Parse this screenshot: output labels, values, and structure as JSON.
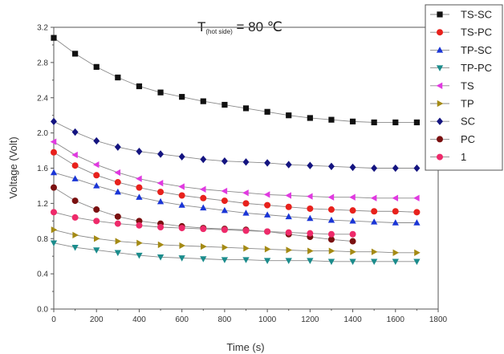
{
  "chart_data": {
    "type": "scatter",
    "title_main": "T",
    "title_sub": "(hot side)",
    "title_rest": " = 80 ℃",
    "xlabel": "Time (s)",
    "ylabel": "Voltage (Volt)",
    "xlim": [
      0,
      1800
    ],
    "ylim": [
      0.0,
      3.2
    ],
    "xticks": [
      "0",
      "200",
      "400",
      "600",
      "800",
      "1000",
      "1200",
      "1400",
      "1600",
      "1800"
    ],
    "yticks": [
      "0.0",
      "0.4",
      "0.8",
      "1.2",
      "1.6",
      "2.0",
      "2.4",
      "2.8",
      "3.2"
    ],
    "legend_position": "right",
    "x": [
      0,
      100,
      200,
      300,
      400,
      500,
      600,
      700,
      800,
      900,
      1000,
      1100,
      1200,
      1300,
      1400,
      1500,
      1600,
      1700
    ],
    "series": [
      {
        "name": "TS-SC",
        "marker": "square",
        "color": "#111111",
        "values": [
          3.08,
          2.9,
          2.75,
          2.63,
          2.53,
          2.46,
          2.41,
          2.36,
          2.32,
          2.28,
          2.24,
          2.2,
          2.17,
          2.15,
          2.13,
          2.12,
          2.12,
          2.12
        ]
      },
      {
        "name": "TS-PC",
        "marker": "circle",
        "color": "#e8211c",
        "values": [
          1.78,
          1.63,
          1.52,
          1.44,
          1.38,
          1.33,
          1.29,
          1.26,
          1.23,
          1.2,
          1.18,
          1.16,
          1.14,
          1.13,
          1.12,
          1.11,
          1.11,
          1.1
        ]
      },
      {
        "name": "TP-SC",
        "marker": "triangle-up",
        "color": "#1a35d6",
        "values": [
          1.55,
          1.48,
          1.4,
          1.33,
          1.27,
          1.22,
          1.18,
          1.15,
          1.12,
          1.09,
          1.07,
          1.05,
          1.03,
          1.01,
          1.0,
          0.99,
          0.98,
          0.98
        ]
      },
      {
        "name": "TP-PC",
        "marker": "triangle-down",
        "color": "#1b8c8c",
        "values": [
          0.75,
          0.7,
          0.67,
          0.64,
          0.61,
          0.59,
          0.58,
          0.57,
          0.56,
          0.56,
          0.55,
          0.55,
          0.55,
          0.54,
          0.54,
          0.54,
          0.54,
          0.54
        ]
      },
      {
        "name": "TS",
        "marker": "triangle-left",
        "color": "#e03ae0",
        "values": [
          1.9,
          1.75,
          1.64,
          1.55,
          1.48,
          1.43,
          1.39,
          1.36,
          1.34,
          1.32,
          1.3,
          1.29,
          1.28,
          1.27,
          1.27,
          1.26,
          1.26,
          1.26
        ]
      },
      {
        "name": "TP",
        "marker": "triangle-right",
        "color": "#a48a14",
        "values": [
          0.9,
          0.84,
          0.8,
          0.77,
          0.75,
          0.73,
          0.72,
          0.71,
          0.7,
          0.69,
          0.68,
          0.67,
          0.66,
          0.66,
          0.65,
          0.65,
          0.64,
          0.64
        ]
      },
      {
        "name": "SC",
        "marker": "diamond",
        "color": "#141480",
        "values": [
          2.13,
          2.01,
          1.91,
          1.84,
          1.79,
          1.76,
          1.73,
          1.7,
          1.68,
          1.67,
          1.66,
          1.64,
          1.63,
          1.62,
          1.61,
          1.6,
          1.6,
          1.6
        ]
      },
      {
        "name": "PC",
        "marker": "circle",
        "color": "#7a1010",
        "values": [
          1.38,
          1.23,
          1.13,
          1.05,
          1.0,
          0.97,
          0.94,
          0.92,
          0.91,
          0.9,
          0.88,
          0.85,
          0.82,
          0.79,
          0.77,
          null,
          null,
          null
        ]
      },
      {
        "name": "1",
        "marker": "circle",
        "color": "#ee2a6a",
        "values": [
          1.1,
          1.04,
          1.0,
          0.97,
          0.95,
          0.93,
          0.92,
          0.91,
          0.9,
          0.89,
          0.88,
          0.87,
          0.86,
          0.85,
          0.85,
          null,
          null,
          null
        ]
      }
    ]
  }
}
